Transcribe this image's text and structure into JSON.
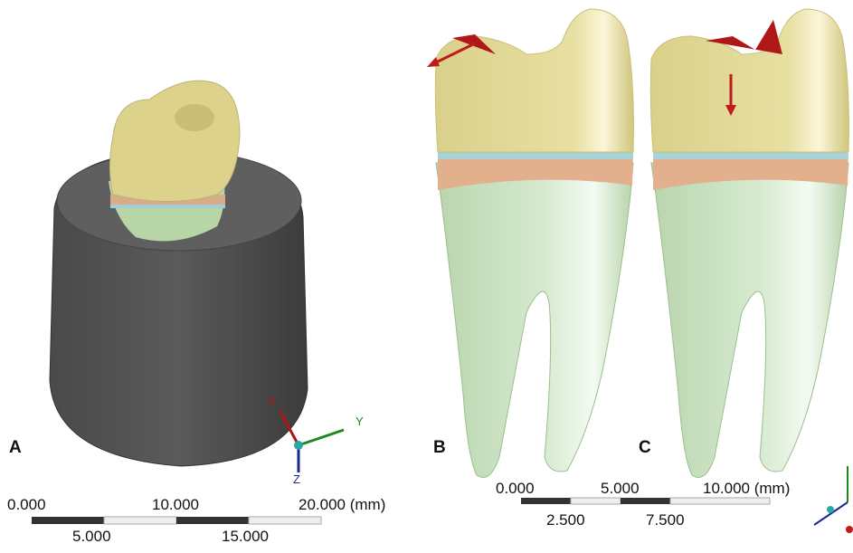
{
  "panels": [
    {
      "label": "A",
      "axes": [
        "X",
        "Y",
        "Z"
      ],
      "scale": {
        "top": [
          "0.000",
          "10.000",
          "20.000 (mm)"
        ],
        "bottom": [
          "5.000",
          "15.000"
        ]
      }
    },
    {
      "label": "B"
    },
    {
      "label": "C",
      "scale": {
        "top": [
          "0.000",
          "5.000",
          "10.000 (mm)"
        ],
        "bottom": [
          "2.500",
          "7.500"
        ]
      }
    }
  ]
}
